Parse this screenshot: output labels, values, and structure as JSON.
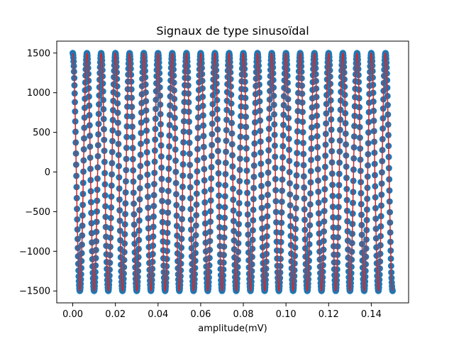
{
  "chart_data": {
    "type": "scatter",
    "title": "Signaux de type sinusoïdal",
    "xlabel": "amplitude(mV)",
    "ylabel": "",
    "xlim": [
      -0.0075,
      0.1575
    ],
    "ylim": [
      -1650,
      1650
    ],
    "x_ticks": [
      0.0,
      0.02,
      0.04,
      0.06,
      0.08,
      0.1,
      0.12,
      0.14
    ],
    "x_tick_labels": [
      "0.00",
      "0.02",
      "0.04",
      "0.06",
      "0.08",
      "0.10",
      "0.12",
      "0.14"
    ],
    "y_ticks": [
      -1500,
      -1000,
      -500,
      0,
      500,
      1000,
      1500
    ],
    "y_tick_labels": [
      "−1500",
      "−1000",
      "−500",
      "0",
      "500",
      "1000",
      "1500"
    ],
    "grid": false,
    "signal": {
      "amplitude": 1500,
      "frequency_hz": 150,
      "phase": "cosine",
      "x_start": 0.0,
      "x_end": 0.15,
      "sample_count": 1500
    },
    "series": [
      {
        "kind": "markers",
        "color": "#1f77b4"
      },
      {
        "kind": "line",
        "color": "#d62728"
      }
    ]
  }
}
